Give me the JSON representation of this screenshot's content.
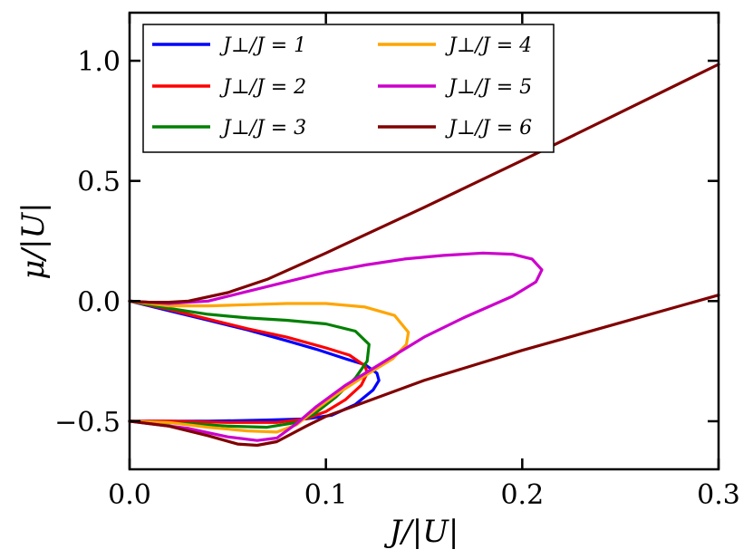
{
  "chart_data": {
    "type": "line",
    "title": "",
    "xlabel": "J/|U|",
    "ylabel": "μ/|U|",
    "xlim": [
      0.0,
      0.3
    ],
    "ylim": [
      -0.7,
      1.2
    ],
    "xticks": [
      "0.0",
      "0.1",
      "0.2",
      "0.3"
    ],
    "yticks": [
      "−0.5",
      "0.0",
      "0.5",
      "1.0"
    ],
    "xtick_values": [
      0.0,
      0.1,
      0.2,
      0.3
    ],
    "ytick_values": [
      -0.5,
      0.0,
      0.5,
      1.0
    ],
    "grid": false,
    "legend_placement": "top-left",
    "legend_columns": 2,
    "series": [
      {
        "name": "J⊥/J = 1",
        "color": "#0000ff",
        "points": [
          [
            0.0,
            0.0
          ],
          [
            0.02,
            -0.04
          ],
          [
            0.04,
            -0.08
          ],
          [
            0.06,
            -0.12
          ],
          [
            0.08,
            -0.165
          ],
          [
            0.095,
            -0.2
          ],
          [
            0.11,
            -0.24
          ],
          [
            0.12,
            -0.265
          ],
          [
            0.126,
            -0.3
          ],
          [
            0.127,
            -0.33
          ],
          [
            0.124,
            -0.37
          ],
          [
            0.115,
            -0.43
          ],
          [
            0.103,
            -0.475
          ],
          [
            0.09,
            -0.49
          ],
          [
            0.07,
            -0.495
          ],
          [
            0.04,
            -0.5
          ],
          [
            0.0,
            -0.5
          ]
        ]
      },
      {
        "name": "J⊥/J = 2",
        "color": "#ff0000",
        "points": [
          [
            0.0,
            0.0
          ],
          [
            0.02,
            -0.035
          ],
          [
            0.04,
            -0.075
          ],
          [
            0.06,
            -0.115
          ],
          [
            0.08,
            -0.15
          ],
          [
            0.1,
            -0.195
          ],
          [
            0.112,
            -0.225
          ],
          [
            0.12,
            -0.27
          ],
          [
            0.121,
            -0.3
          ],
          [
            0.118,
            -0.35
          ],
          [
            0.11,
            -0.41
          ],
          [
            0.1,
            -0.46
          ],
          [
            0.09,
            -0.49
          ],
          [
            0.075,
            -0.505
          ],
          [
            0.05,
            -0.505
          ],
          [
            0.02,
            -0.5
          ],
          [
            0.0,
            -0.5
          ]
        ]
      },
      {
        "name": "J⊥/J = 3",
        "color": "#008000",
        "points": [
          [
            0.0,
            0.0
          ],
          [
            0.02,
            -0.03
          ],
          [
            0.04,
            -0.055
          ],
          [
            0.06,
            -0.07
          ],
          [
            0.08,
            -0.08
          ],
          [
            0.1,
            -0.095
          ],
          [
            0.115,
            -0.125
          ],
          [
            0.122,
            -0.18
          ],
          [
            0.121,
            -0.25
          ],
          [
            0.115,
            -0.32
          ],
          [
            0.105,
            -0.4
          ],
          [
            0.094,
            -0.47
          ],
          [
            0.085,
            -0.505
          ],
          [
            0.07,
            -0.525
          ],
          [
            0.05,
            -0.52
          ],
          [
            0.03,
            -0.51
          ],
          [
            0.0,
            -0.5
          ]
        ]
      },
      {
        "name": "J⊥/J = 4",
        "color": "#ffa500",
        "points": [
          [
            0.0,
            0.0
          ],
          [
            0.02,
            -0.02
          ],
          [
            0.04,
            -0.02
          ],
          [
            0.06,
            -0.015
          ],
          [
            0.08,
            -0.01
          ],
          [
            0.1,
            -0.01
          ],
          [
            0.12,
            -0.025
          ],
          [
            0.135,
            -0.06
          ],
          [
            0.142,
            -0.13
          ],
          [
            0.141,
            -0.18
          ],
          [
            0.134,
            -0.24
          ],
          [
            0.12,
            -0.31
          ],
          [
            0.105,
            -0.39
          ],
          [
            0.095,
            -0.45
          ],
          [
            0.085,
            -0.515
          ],
          [
            0.075,
            -0.545
          ],
          [
            0.06,
            -0.54
          ],
          [
            0.04,
            -0.525
          ],
          [
            0.02,
            -0.505
          ],
          [
            0.0,
            -0.5
          ]
        ]
      },
      {
        "name": "J⊥/J = 5",
        "color": "#cc00cc",
        "points": [
          [
            0.0,
            0.0
          ],
          [
            0.02,
            -0.01
          ],
          [
            0.04,
            0.0
          ],
          [
            0.06,
            0.04
          ],
          [
            0.08,
            0.08
          ],
          [
            0.1,
            0.12
          ],
          [
            0.12,
            0.15
          ],
          [
            0.14,
            0.175
          ],
          [
            0.16,
            0.19
          ],
          [
            0.18,
            0.2
          ],
          [
            0.195,
            0.195
          ],
          [
            0.205,
            0.175
          ],
          [
            0.21,
            0.13
          ],
          [
            0.207,
            0.08
          ],
          [
            0.195,
            0.02
          ],
          [
            0.17,
            -0.07
          ],
          [
            0.15,
            -0.15
          ],
          [
            0.13,
            -0.25
          ],
          [
            0.11,
            -0.35
          ],
          [
            0.095,
            -0.44
          ],
          [
            0.085,
            -0.51
          ],
          [
            0.075,
            -0.57
          ],
          [
            0.065,
            -0.58
          ],
          [
            0.05,
            -0.565
          ],
          [
            0.03,
            -0.53
          ],
          [
            0.0,
            -0.5
          ]
        ]
      },
      {
        "name": "J⊥/J = 6",
        "color": "#800000",
        "points": [
          [
            0.0,
            0.0
          ],
          [
            0.01,
            -0.005
          ],
          [
            0.02,
            -0.005
          ],
          [
            0.03,
            0.0
          ],
          [
            0.05,
            0.035
          ],
          [
            0.07,
            0.09
          ],
          [
            0.1,
            0.2
          ],
          [
            0.15,
            0.39
          ],
          [
            0.2,
            0.585
          ],
          [
            0.25,
            0.785
          ],
          [
            0.3,
            0.985
          ]
        ]
      },
      {
        "name": "",
        "color": "#800000",
        "points": [
          [
            0.0,
            -0.5
          ],
          [
            0.02,
            -0.52
          ],
          [
            0.04,
            -0.56
          ],
          [
            0.055,
            -0.595
          ],
          [
            0.065,
            -0.6
          ],
          [
            0.075,
            -0.585
          ],
          [
            0.09,
            -0.52
          ],
          [
            0.1,
            -0.48
          ],
          [
            0.15,
            -0.33
          ],
          [
            0.2,
            -0.205
          ],
          [
            0.25,
            -0.09
          ],
          [
            0.3,
            0.025
          ]
        ]
      }
    ],
    "legend": [
      "J⊥/J = 1",
      "J⊥/J = 2",
      "J⊥/J = 3",
      "J⊥/J = 4",
      "J⊥/J = 5",
      "J⊥/J = 6"
    ]
  }
}
